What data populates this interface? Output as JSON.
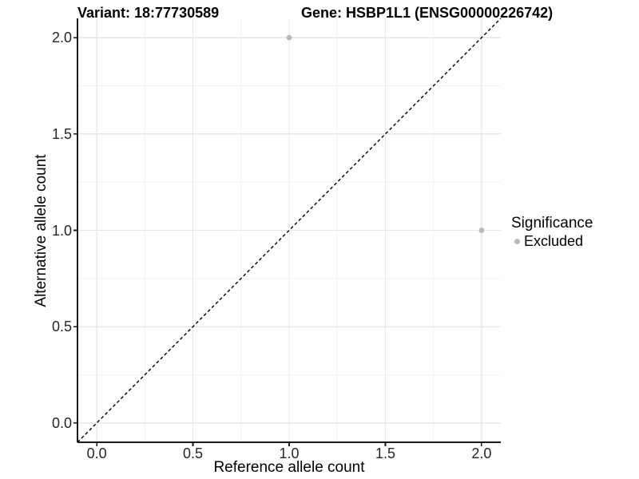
{
  "chart_data": {
    "type": "scatter",
    "titles": {
      "left": "Variant: 18:77730589",
      "right": "Gene: HSBP1L1 (ENSG00000226742)"
    },
    "xlabel": "Reference allele count",
    "ylabel": "Alternative allele count",
    "xlim": [
      -0.1,
      2.1
    ],
    "ylim": [
      -0.1,
      2.1
    ],
    "xticks": {
      "values": [
        0,
        0.5,
        1,
        1.5,
        2
      ],
      "labels": [
        "0.0",
        "0.5",
        "1.0",
        "1.5",
        "2.0"
      ]
    },
    "yticks": {
      "values": [
        0,
        0.5,
        1,
        1.5,
        2
      ],
      "labels": [
        "0.0",
        "0.5",
        "1.0",
        "1.5",
        "2.0"
      ]
    },
    "minor_ticks": [
      0.25,
      0.75,
      1.25,
      1.75
    ],
    "grid": {
      "show": true,
      "major_color": "#e7e7e7",
      "minor_color": "#f2f2f2"
    },
    "series": [
      {
        "name": "Excluded",
        "color": "#b9b9b9",
        "points": [
          {
            "x": 1.0,
            "y": 2.0
          },
          {
            "x": 2.0,
            "y": 1.0
          }
        ]
      }
    ],
    "reference_line": {
      "kind": "identity",
      "dashed": true,
      "color": "#000000"
    },
    "axis_color": "#1a1a1a",
    "legend": {
      "title": "Significance",
      "position": "right",
      "entries": [
        {
          "label": "Excluded",
          "color": "#b9b9b9"
        }
      ]
    }
  }
}
